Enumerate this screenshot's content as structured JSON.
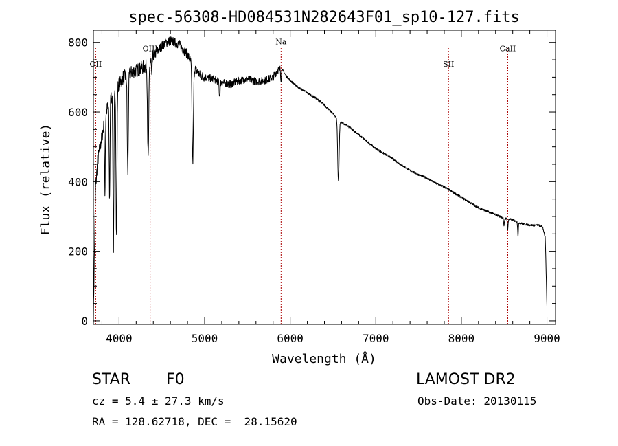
{
  "chart_data": {
    "type": "line",
    "title": "spec-56308-HD084531N282643F01_sp10-127.fits",
    "xlabel": "Wavelength (Å)",
    "ylabel": "Flux (relative)",
    "xlim": [
      3700,
      9100
    ],
    "ylim": [
      -10,
      835
    ],
    "xticks": [
      4000,
      5000,
      6000,
      7000,
      8000,
      9000
    ],
    "yticks": [
      0,
      200,
      400,
      600,
      800
    ],
    "line_color": "#000000",
    "marker_color": "#aa0000",
    "lines": [
      {
        "label": "OII",
        "x": 3727,
        "label_y": 730
      },
      {
        "label": "OIII",
        "x": 4363,
        "label_y": 775
      },
      {
        "label": "Na",
        "x": 5893,
        "label_y": 795
      },
      {
        "label": "SII",
        "x": 7850,
        "label_y": 730
      },
      {
        "label": "CaII",
        "x": 8542,
        "label_y": 775
      }
    ],
    "continuum": [
      [
        3700,
        0
      ],
      [
        3710,
        170
      ],
      [
        3725,
        380
      ],
      [
        3750,
        460
      ],
      [
        3800,
        530
      ],
      [
        3850,
        600
      ],
      [
        3900,
        640
      ],
      [
        3950,
        660
      ],
      [
        4000,
        680
      ],
      [
        4050,
        700
      ],
      [
        4100,
        705
      ],
      [
        4150,
        715
      ],
      [
        4200,
        720
      ],
      [
        4250,
        725
      ],
      [
        4300,
        730
      ],
      [
        4350,
        735
      ],
      [
        4400,
        760
      ],
      [
        4450,
        775
      ],
      [
        4500,
        790
      ],
      [
        4550,
        800
      ],
      [
        4600,
        805
      ],
      [
        4650,
        800
      ],
      [
        4700,
        795
      ],
      [
        4750,
        780
      ],
      [
        4800,
        765
      ],
      [
        4850,
        740
      ],
      [
        4900,
        720
      ],
      [
        4950,
        705
      ],
      [
        5000,
        700
      ],
      [
        5100,
        695
      ],
      [
        5200,
        685
      ],
      [
        5300,
        680
      ],
      [
        5400,
        690
      ],
      [
        5500,
        695
      ],
      [
        5600,
        688
      ],
      [
        5700,
        690
      ],
      [
        5800,
        700
      ],
      [
        5850,
        720
      ],
      [
        5900,
        725
      ],
      [
        5950,
        705
      ],
      [
        6000,
        690
      ],
      [
        6100,
        670
      ],
      [
        6200,
        655
      ],
      [
        6300,
        640
      ],
      [
        6400,
        620
      ],
      [
        6500,
        595
      ],
      [
        6600,
        570
      ],
      [
        6700,
        555
      ],
      [
        6800,
        535
      ],
      [
        6900,
        515
      ],
      [
        7000,
        495
      ],
      [
        7100,
        480
      ],
      [
        7200,
        465
      ],
      [
        7300,
        448
      ],
      [
        7400,
        432
      ],
      [
        7500,
        420
      ],
      [
        7600,
        410
      ],
      [
        7700,
        395
      ],
      [
        7800,
        385
      ],
      [
        7900,
        370
      ],
      [
        8000,
        355
      ],
      [
        8100,
        340
      ],
      [
        8200,
        325
      ],
      [
        8300,
        315
      ],
      [
        8400,
        305
      ],
      [
        8500,
        295
      ],
      [
        8600,
        290
      ],
      [
        8700,
        280
      ],
      [
        8800,
        275
      ],
      [
        8900,
        275
      ],
      [
        8950,
        270
      ],
      [
        8980,
        240
      ],
      [
        9000,
        40
      ]
    ],
    "absorption": [
      {
        "x": 3835,
        "depth": 220,
        "width": 6
      },
      {
        "x": 3889,
        "depth": 280,
        "width": 7
      },
      {
        "x": 3934,
        "depth": 450,
        "width": 8
      },
      {
        "x": 3970,
        "depth": 430,
        "width": 8
      },
      {
        "x": 4102,
        "depth": 280,
        "width": 9
      },
      {
        "x": 4340,
        "depth": 270,
        "width": 10
      },
      {
        "x": 4383,
        "depth": 60,
        "width": 5
      },
      {
        "x": 4861,
        "depth": 280,
        "width": 11
      },
      {
        "x": 5175,
        "depth": 40,
        "width": 8
      },
      {
        "x": 5893,
        "depth": 30,
        "width": 6
      },
      {
        "x": 6563,
        "depth": 175,
        "width": 12
      },
      {
        "x": 8498,
        "depth": 25,
        "width": 6
      },
      {
        "x": 8542,
        "depth": 30,
        "width": 6
      },
      {
        "x": 8662,
        "depth": 40,
        "width": 6
      }
    ]
  },
  "info": {
    "class_label": "STAR",
    "subclass": "F0",
    "survey": "LAMOST DR2",
    "cz": "cz = 5.4 ± 27.3 km/s",
    "obs_date": "Obs-Date: 20130115",
    "radec": "RA = 128.62718, DEC =  28.15620"
  }
}
